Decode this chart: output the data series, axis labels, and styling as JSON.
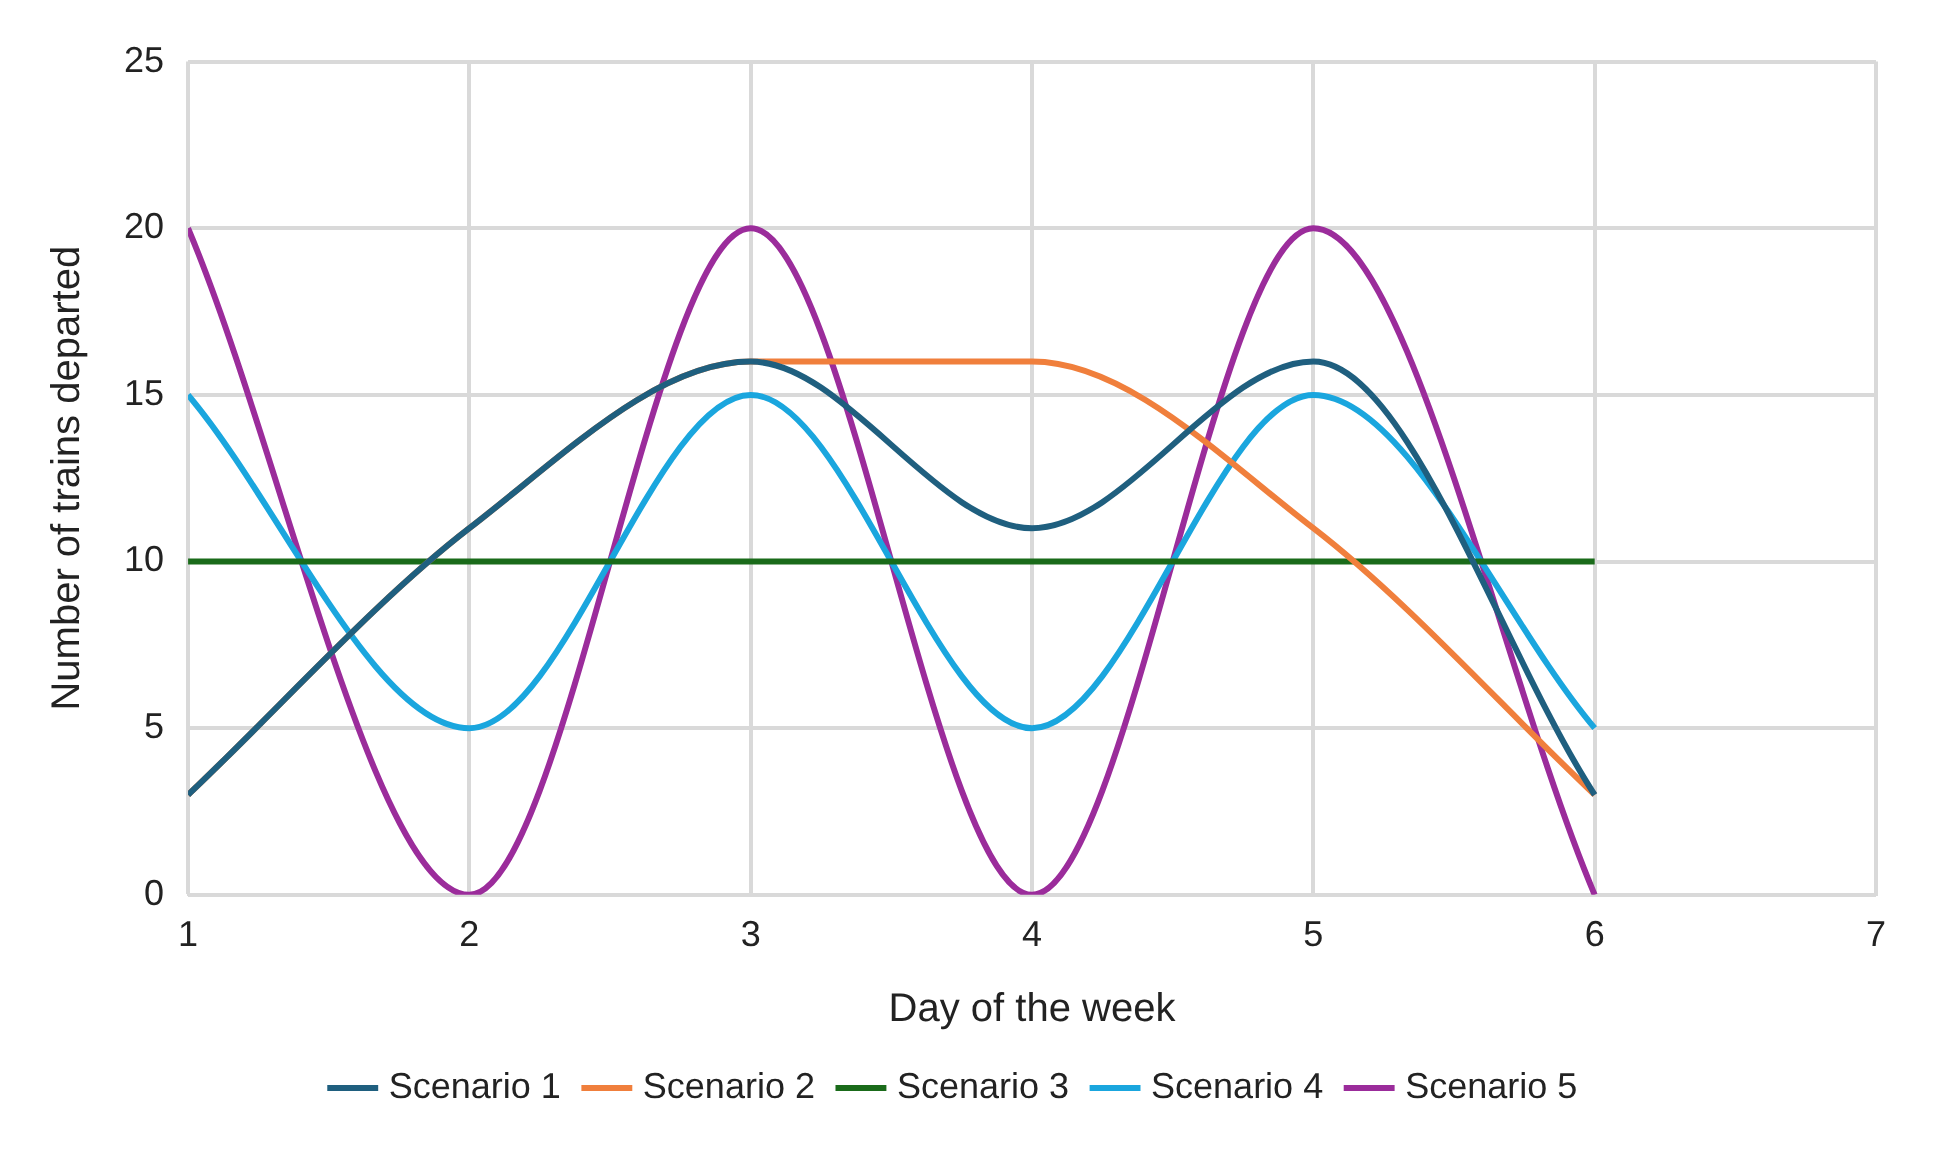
{
  "chart_data": {
    "type": "line",
    "xlabel": "Day of the week",
    "ylabel": "Number of trains departed",
    "x": [
      1,
      2,
      3,
      4,
      5,
      6
    ],
    "xlim": [
      1,
      7
    ],
    "xticks": [
      1,
      2,
      3,
      4,
      5,
      6,
      7
    ],
    "ylim": [
      0,
      25
    ],
    "yticks": [
      0,
      5,
      10,
      15,
      20,
      25
    ],
    "grid": true,
    "legend": "bottom",
    "marker": "none",
    "line_style": "solid",
    "series": [
      {
        "name": "Scenario 1",
        "color": "#1f5f7f",
        "values": [
          3,
          11,
          16,
          11,
          16,
          3
        ]
      },
      {
        "name": "Scenario 2",
        "color": "#f07f3c",
        "values": [
          3,
          11,
          16,
          16,
          11,
          3
        ]
      },
      {
        "name": "Scenario 3",
        "color": "#1a6b1a",
        "values": [
          10,
          10,
          10,
          10,
          10,
          10
        ]
      },
      {
        "name": "Scenario 4",
        "color": "#1aa6de",
        "values": [
          15,
          5,
          15,
          5,
          15,
          5
        ]
      },
      {
        "name": "Scenario 5",
        "color": "#9b2c9b",
        "values": [
          20,
          0,
          20,
          0,
          20,
          0
        ]
      }
    ]
  }
}
